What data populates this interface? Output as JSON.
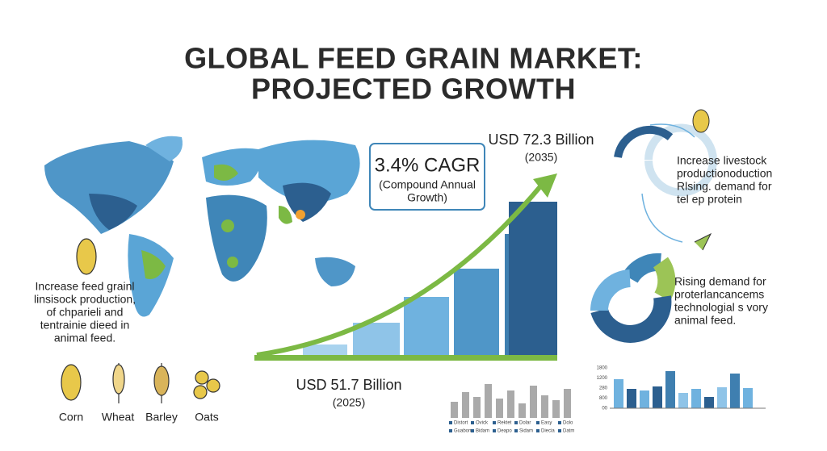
{
  "title": [
    "GLOBAL FEED GRAIN MARKET:",
    "PROJECTED GROWTH"
  ],
  "cagr": {
    "headline": "3.4% CAGR",
    "note": [
      "(Compound Annual",
      "Growth)"
    ]
  },
  "start": {
    "label": "USD 51.7 Billion",
    "year": "(2025)"
  },
  "end": {
    "label": "USD 72.3 Billion",
    "year": "(2035)"
  },
  "left_note": [
    "Increase feed grainl",
    "linsisock production,",
    "of chparieli and",
    "tentrainie dieed in",
    "animal feed."
  ],
  "grains": [
    "Corn",
    "Wheat",
    "Barley",
    "Oats"
  ],
  "right_top_note": [
    "Increase livestock",
    "productionoduction",
    "Rlsing. demand for",
    "tel ep protein"
  ],
  "right_mid_note": [
    "Rising demand for",
    "proterlancancems",
    "technologial  s vory",
    "animal feed."
  ],
  "small_chart_legend": [
    "Distort",
    "Ovick",
    "Rektet",
    "Dolar",
    "Easy",
    "Dolo",
    "Guabom",
    "Bidam",
    "Deapo",
    "Sidam",
    "Diecia",
    "Datm"
  ],
  "right_chart_axis": [
    "1800",
    "1200",
    "280",
    "800",
    "00"
  ]
}
